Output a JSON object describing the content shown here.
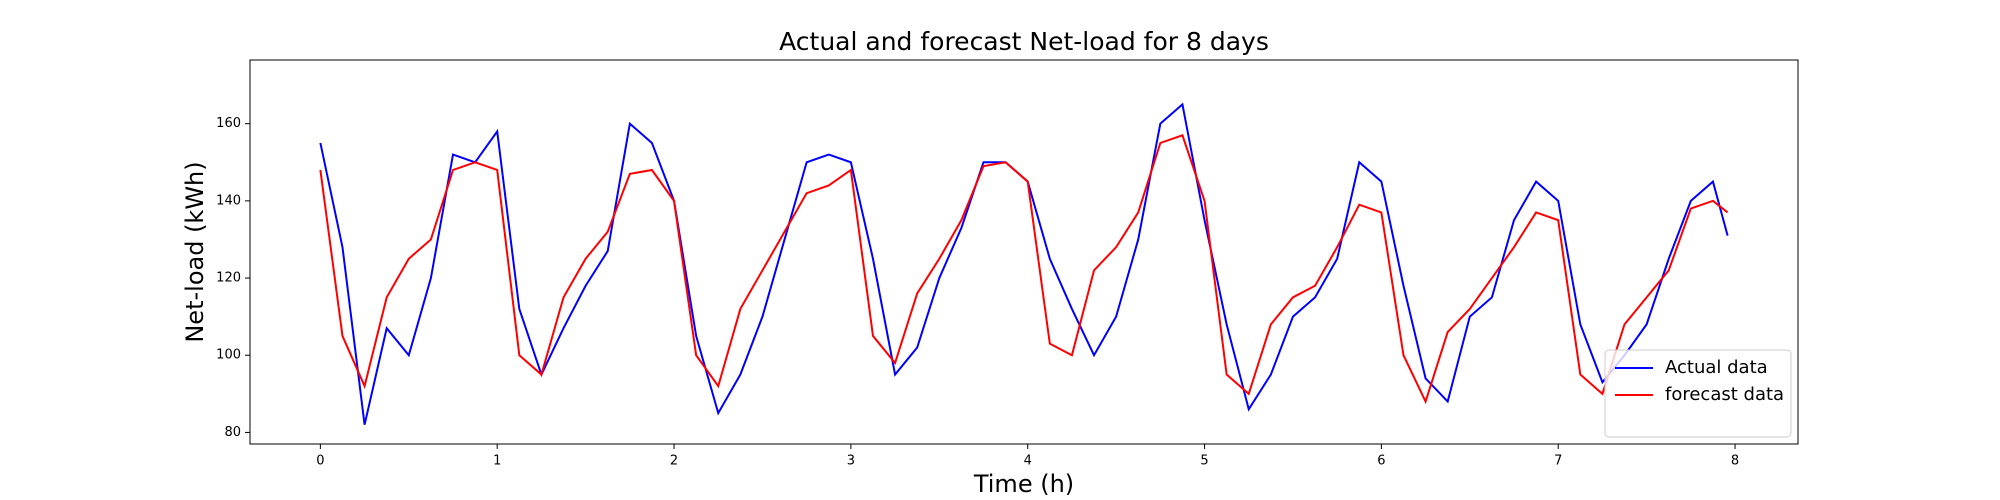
{
  "chart_data": {
    "type": "line",
    "title": "Actual and forecast Net-load for 8 days",
    "x_label": "Time (h)",
    "y_label": "Net-load (kWh)",
    "x": [
      0,
      0.125,
      0.25,
      0.375,
      0.5,
      0.625,
      0.75,
      0.875,
      1,
      1.125,
      1.25,
      1.375,
      1.5,
      1.625,
      1.75,
      1.875,
      2,
      2.125,
      2.25,
      2.375,
      2.5,
      2.625,
      2.75,
      2.875,
      3,
      3.125,
      3.25,
      3.375,
      3.5,
      3.625,
      3.75,
      3.875,
      4,
      4.125,
      4.25,
      4.375,
      4.5,
      4.625,
      4.75,
      4.875,
      5,
      5.125,
      5.25,
      5.375,
      5.5,
      5.625,
      5.75,
      5.875,
      6,
      6.125,
      6.25,
      6.375,
      6.5,
      6.625,
      6.75,
      6.875,
      7,
      7.125,
      7.25,
      7.375,
      7.5,
      7.625,
      7.75,
      7.875,
      7.958
    ],
    "series": [
      {
        "name": "Actual data",
        "color": "#0000ff",
        "values": [
          155,
          128,
          82,
          107,
          100,
          120,
          152,
          150,
          158,
          112,
          95,
          107,
          118,
          127,
          160,
          155,
          140,
          105,
          85,
          95,
          110,
          130,
          150,
          152,
          150,
          125,
          95,
          102,
          120,
          133,
          150,
          150,
          145,
          125,
          112,
          100,
          110,
          130,
          160,
          165,
          135,
          108,
          86,
          95,
          110,
          115,
          125,
          150,
          145,
          118,
          94,
          88,
          110,
          115,
          135,
          145,
          140,
          108,
          93,
          100,
          108,
          125,
          140,
          145,
          131
        ]
      },
      {
        "name": "forecast data",
        "color": "#ff0000",
        "values": [
          148,
          105,
          92,
          115,
          125,
          130,
          148,
          150,
          148,
          100,
          95,
          115,
          125,
          132,
          147,
          148,
          140,
          100,
          92,
          112,
          122,
          132,
          142,
          144,
          148,
          105,
          98,
          116,
          125,
          135,
          149,
          150,
          145,
          103,
          100,
          122,
          128,
          137,
          155,
          157,
          140,
          95,
          90,
          108,
          115,
          118,
          128,
          139,
          137,
          100,
          88,
          106,
          112,
          120,
          128,
          137,
          135,
          95,
          90,
          108,
          115,
          122,
          138,
          140,
          137
        ]
      }
    ],
    "xlim": [
      -0.398,
      8.356
    ],
    "xticks": [
      0,
      1,
      2,
      3,
      4,
      5,
      6,
      7,
      8
    ],
    "ylim": [
      77,
      176.5
    ],
    "yticks": [
      80,
      100,
      120,
      140,
      160
    ],
    "legend": "lower right"
  }
}
